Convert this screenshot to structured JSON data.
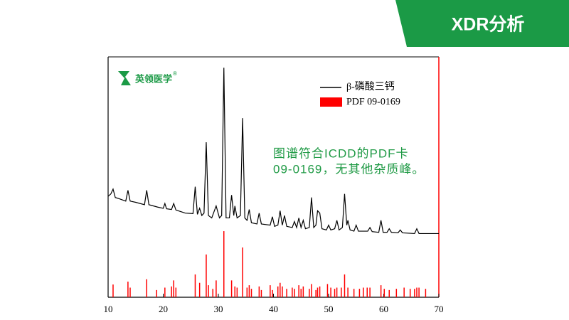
{
  "header": {
    "tab": "XDR分析"
  },
  "logo": {
    "text": "英领医学",
    "mark": "®"
  },
  "chart_data": {
    "type": "line",
    "xlim": [
      10,
      70
    ],
    "xticks": [
      10,
      20,
      30,
      40,
      50,
      60,
      70
    ],
    "ylim": [
      0,
      100
    ],
    "series": [
      {
        "name": "β-磷酸三钙",
        "type": "line",
        "color": "#000000",
        "x": [
          10,
          10.5,
          10.9,
          11.3,
          12,
          13.2,
          13.6,
          14,
          15,
          16.6,
          17,
          17.4,
          19,
          20,
          20.3,
          20.6,
          21.5,
          21.9,
          22.3,
          24,
          25.4,
          25.8,
          26.2,
          26.6,
          27,
          27.4,
          27.8,
          28.2,
          28.8,
          29.6,
          30.2,
          30.6,
          31,
          31.4,
          32,
          32.4,
          32.8,
          33,
          33.4,
          34,
          34.4,
          34.8,
          35.2,
          35.6,
          36,
          37,
          37.4,
          37.8,
          39.4,
          39.8,
          40.2,
          40.8,
          41.2,
          41.6,
          42,
          42.4,
          43.4,
          43.8,
          44.2,
          44.6,
          45,
          45.4,
          45.8,
          46.5,
          46.9,
          47.3,
          47.7,
          48,
          48.4,
          48.8,
          49.6,
          50,
          50.4,
          51.1,
          51.5,
          51.9,
          52.5,
          52.9,
          53.3,
          53.5,
          53.9,
          54.6,
          55,
          55.4,
          57.1,
          57.5,
          57.9,
          59.1,
          59.5,
          59.9,
          60.6,
          61,
          61.4,
          62.6,
          63,
          63.4,
          65.6,
          66,
          66.4,
          68,
          70
        ],
        "values": [
          42,
          43,
          45,
          41.5,
          41,
          40,
          44.5,
          40,
          39.5,
          38.5,
          44.5,
          38.5,
          37.5,
          37,
          39,
          36.8,
          36.5,
          39,
          36.3,
          35,
          34.8,
          46,
          34.5,
          37,
          34,
          35,
          64.5,
          34,
          33,
          38,
          33,
          34,
          95.5,
          33,
          33,
          42.5,
          34,
          38,
          33,
          34,
          74.5,
          33,
          32,
          36.5,
          31,
          30.5,
          35,
          30.5,
          30,
          33.5,
          29.5,
          30,
          36,
          30,
          34,
          29.5,
          29,
          31.5,
          29,
          33,
          29,
          32,
          28.5,
          29,
          41.5,
          29,
          30,
          36,
          35,
          28.5,
          28,
          30,
          28,
          28.5,
          32,
          28,
          29,
          43,
          30,
          32,
          28,
          27.5,
          30,
          27.5,
          27.5,
          29,
          27.3,
          27,
          32,
          27,
          27,
          28.5,
          27,
          26.8,
          28,
          26.8,
          26.5,
          28.5,
          26.5,
          26.5,
          26.5
        ]
      },
      {
        "name": "PDF 09-0169",
        "type": "bar",
        "color": "#ff0000",
        "x": [
          10.9,
          13.6,
          14,
          17,
          18.8,
          20.3,
          21.5,
          21.9,
          22.3,
          25.8,
          26.6,
          27.8,
          28.2,
          29,
          29.6,
          31,
          32.4,
          33,
          33.4,
          34.4,
          35.2,
          35.6,
          36,
          37.4,
          37.8,
          39.4,
          39.8,
          40.8,
          41.2,
          41.6,
          42.4,
          43.4,
          43.8,
          44.6,
          45,
          45.4,
          46.5,
          46.9,
          47.7,
          48,
          48.4,
          49.8,
          50.4,
          51.1,
          51.5,
          52.3,
          52.9,
          53.5,
          54.6,
          55.6,
          56.3,
          57,
          57.5,
          59.5,
          60.1,
          61,
          62.3,
          63.7,
          64.8,
          65.6,
          66,
          66.4,
          67.6
        ],
        "values": [
          5.3,
          6.5,
          4,
          7.5,
          3,
          4,
          4.5,
          7,
          4,
          9.5,
          6,
          17.8,
          5,
          3.5,
          7,
          27.5,
          7,
          4.5,
          4,
          20.7,
          4,
          5,
          3.5,
          4.5,
          3,
          5,
          3,
          4.5,
          6,
          4.5,
          3.5,
          4,
          3.5,
          5,
          3.5,
          4.5,
          3.5,
          5.5,
          3,
          4,
          4.5,
          5.5,
          4,
          3.5,
          4,
          4,
          9.5,
          4,
          3.5,
          3.5,
          4,
          4,
          4,
          5,
          3.5,
          3,
          3.5,
          4,
          3.5,
          3.5,
          4,
          4,
          3.5
        ]
      }
    ],
    "annotation": [
      "图谱符合ICDD的PDF卡",
      "09-0169，无其他杂质峰。"
    ]
  }
}
